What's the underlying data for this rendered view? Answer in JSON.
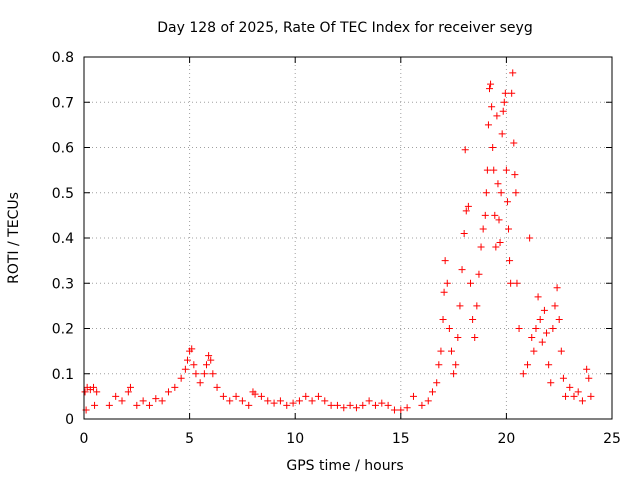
{
  "chart_data": {
    "type": "scatter",
    "title": "Day 128 of 2025, Rate Of TEC Index for receiver seyg",
    "xlabel": "GPS time / hours",
    "ylabel": "ROTI / TECUs",
    "xlim": [
      0,
      25
    ],
    "ylim": [
      0,
      0.8
    ],
    "xticks": [
      0,
      5,
      10,
      15,
      20,
      25
    ],
    "xtick_labels": [
      "0",
      "5",
      "10",
      "15",
      "20",
      "25"
    ],
    "yticks": [
      0,
      0.1,
      0.2,
      0.3,
      0.4,
      0.5,
      0.6,
      0.7,
      0.8
    ],
    "ytick_labels": [
      "0",
      "0.1",
      "0.2",
      "0.3",
      "0.4",
      "0.5",
      "0.6",
      "0.7",
      "0.8"
    ],
    "grid": true,
    "legend": "none",
    "marker": "+",
    "color": "#ff0000",
    "series": [
      {
        "points": [
          [
            0.05,
            0.06
          ],
          [
            0.15,
            0.07
          ],
          [
            0.3,
            0.065
          ],
          [
            0.45,
            0.07
          ],
          [
            0.6,
            0.06
          ],
          [
            0.1,
            0.02
          ],
          [
            0.5,
            0.03
          ],
          [
            1.2,
            0.03
          ],
          [
            1.5,
            0.05
          ],
          [
            1.8,
            0.04
          ],
          [
            2.1,
            0.06
          ],
          [
            2.2,
            0.07
          ],
          [
            2.5,
            0.03
          ],
          [
            2.8,
            0.04
          ],
          [
            3.1,
            0.03
          ],
          [
            3.4,
            0.045
          ],
          [
            3.7,
            0.04
          ],
          [
            4.0,
            0.06
          ],
          [
            4.3,
            0.07
          ],
          [
            4.6,
            0.09
          ],
          [
            4.8,
            0.11
          ],
          [
            4.9,
            0.13
          ],
          [
            5.0,
            0.15
          ],
          [
            5.1,
            0.155
          ],
          [
            5.2,
            0.12
          ],
          [
            5.3,
            0.1
          ],
          [
            5.5,
            0.08
          ],
          [
            5.7,
            0.1
          ],
          [
            5.8,
            0.12
          ],
          [
            5.9,
            0.14
          ],
          [
            6.0,
            0.13
          ],
          [
            6.1,
            0.1
          ],
          [
            6.3,
            0.07
          ],
          [
            6.6,
            0.05
          ],
          [
            6.9,
            0.04
          ],
          [
            7.2,
            0.05
          ],
          [
            7.5,
            0.04
          ],
          [
            7.8,
            0.03
          ],
          [
            8.0,
            0.06
          ],
          [
            8.1,
            0.055
          ],
          [
            8.4,
            0.05
          ],
          [
            8.7,
            0.04
          ],
          [
            9.0,
            0.035
          ],
          [
            9.3,
            0.04
          ],
          [
            9.6,
            0.03
          ],
          [
            9.9,
            0.035
          ],
          [
            10.2,
            0.04
          ],
          [
            10.5,
            0.05
          ],
          [
            10.8,
            0.04
          ],
          [
            11.1,
            0.05
          ],
          [
            11.4,
            0.04
          ],
          [
            11.7,
            0.03
          ],
          [
            12.0,
            0.03
          ],
          [
            12.3,
            0.025
          ],
          [
            12.6,
            0.03
          ],
          [
            12.9,
            0.025
          ],
          [
            13.2,
            0.03
          ],
          [
            13.5,
            0.04
          ],
          [
            13.8,
            0.03
          ],
          [
            14.1,
            0.035
          ],
          [
            14.4,
            0.03
          ],
          [
            14.7,
            0.02
          ],
          [
            15.0,
            0.02
          ],
          [
            15.3,
            0.025
          ],
          [
            15.6,
            0.05
          ],
          [
            16.0,
            0.03
          ],
          [
            16.3,
            0.04
          ],
          [
            16.5,
            0.06
          ],
          [
            16.7,
            0.08
          ],
          [
            16.8,
            0.12
          ],
          [
            16.9,
            0.15
          ],
          [
            17.0,
            0.22
          ],
          [
            17.05,
            0.28
          ],
          [
            17.1,
            0.35
          ],
          [
            17.2,
            0.3
          ],
          [
            17.3,
            0.2
          ],
          [
            17.4,
            0.15
          ],
          [
            17.5,
            0.1
          ],
          [
            17.6,
            0.12
          ],
          [
            17.7,
            0.18
          ],
          [
            17.8,
            0.25
          ],
          [
            17.9,
            0.33
          ],
          [
            18.0,
            0.41
          ],
          [
            18.05,
            0.595
          ],
          [
            18.1,
            0.46
          ],
          [
            18.2,
            0.47
          ],
          [
            18.3,
            0.3
          ],
          [
            18.4,
            0.22
          ],
          [
            18.5,
            0.18
          ],
          [
            18.6,
            0.25
          ],
          [
            18.7,
            0.32
          ],
          [
            18.8,
            0.38
          ],
          [
            18.9,
            0.42
          ],
          [
            19.0,
            0.45
          ],
          [
            19.05,
            0.5
          ],
          [
            19.1,
            0.55
          ],
          [
            19.15,
            0.65
          ],
          [
            19.2,
            0.73
          ],
          [
            19.25,
            0.74
          ],
          [
            19.3,
            0.69
          ],
          [
            19.35,
            0.6
          ],
          [
            19.4,
            0.55
          ],
          [
            19.45,
            0.45
          ],
          [
            19.5,
            0.38
          ],
          [
            19.55,
            0.67
          ],
          [
            19.6,
            0.52
          ],
          [
            19.65,
            0.44
          ],
          [
            19.7,
            0.39
          ],
          [
            19.75,
            0.5
          ],
          [
            19.8,
            0.63
          ],
          [
            19.85,
            0.68
          ],
          [
            19.9,
            0.7
          ],
          [
            19.95,
            0.72
          ],
          [
            20.0,
            0.55
          ],
          [
            20.05,
            0.48
          ],
          [
            20.1,
            0.42
          ],
          [
            20.15,
            0.35
          ],
          [
            20.2,
            0.3
          ],
          [
            20.25,
            0.72
          ],
          [
            20.3,
            0.765
          ],
          [
            20.35,
            0.61
          ],
          [
            20.4,
            0.54
          ],
          [
            20.45,
            0.5
          ],
          [
            20.5,
            0.3
          ],
          [
            20.6,
            0.2
          ],
          [
            20.8,
            0.1
          ],
          [
            21.0,
            0.12
          ],
          [
            21.1,
            0.4
          ],
          [
            21.2,
            0.18
          ],
          [
            21.3,
            0.15
          ],
          [
            21.4,
            0.2
          ],
          [
            21.5,
            0.27
          ],
          [
            21.6,
            0.22
          ],
          [
            21.7,
            0.17
          ],
          [
            21.8,
            0.24
          ],
          [
            21.9,
            0.19
          ],
          [
            22.0,
            0.12
          ],
          [
            22.1,
            0.08
          ],
          [
            22.2,
            0.2
          ],
          [
            22.3,
            0.25
          ],
          [
            22.4,
            0.29
          ],
          [
            22.5,
            0.22
          ],
          [
            22.6,
            0.15
          ],
          [
            22.7,
            0.09
          ],
          [
            22.8,
            0.05
          ],
          [
            23.0,
            0.07
          ],
          [
            23.2,
            0.05
          ],
          [
            23.4,
            0.06
          ],
          [
            23.6,
            0.04
          ],
          [
            23.8,
            0.11
          ],
          [
            23.9,
            0.09
          ],
          [
            24.0,
            0.05
          ]
        ]
      }
    ]
  }
}
